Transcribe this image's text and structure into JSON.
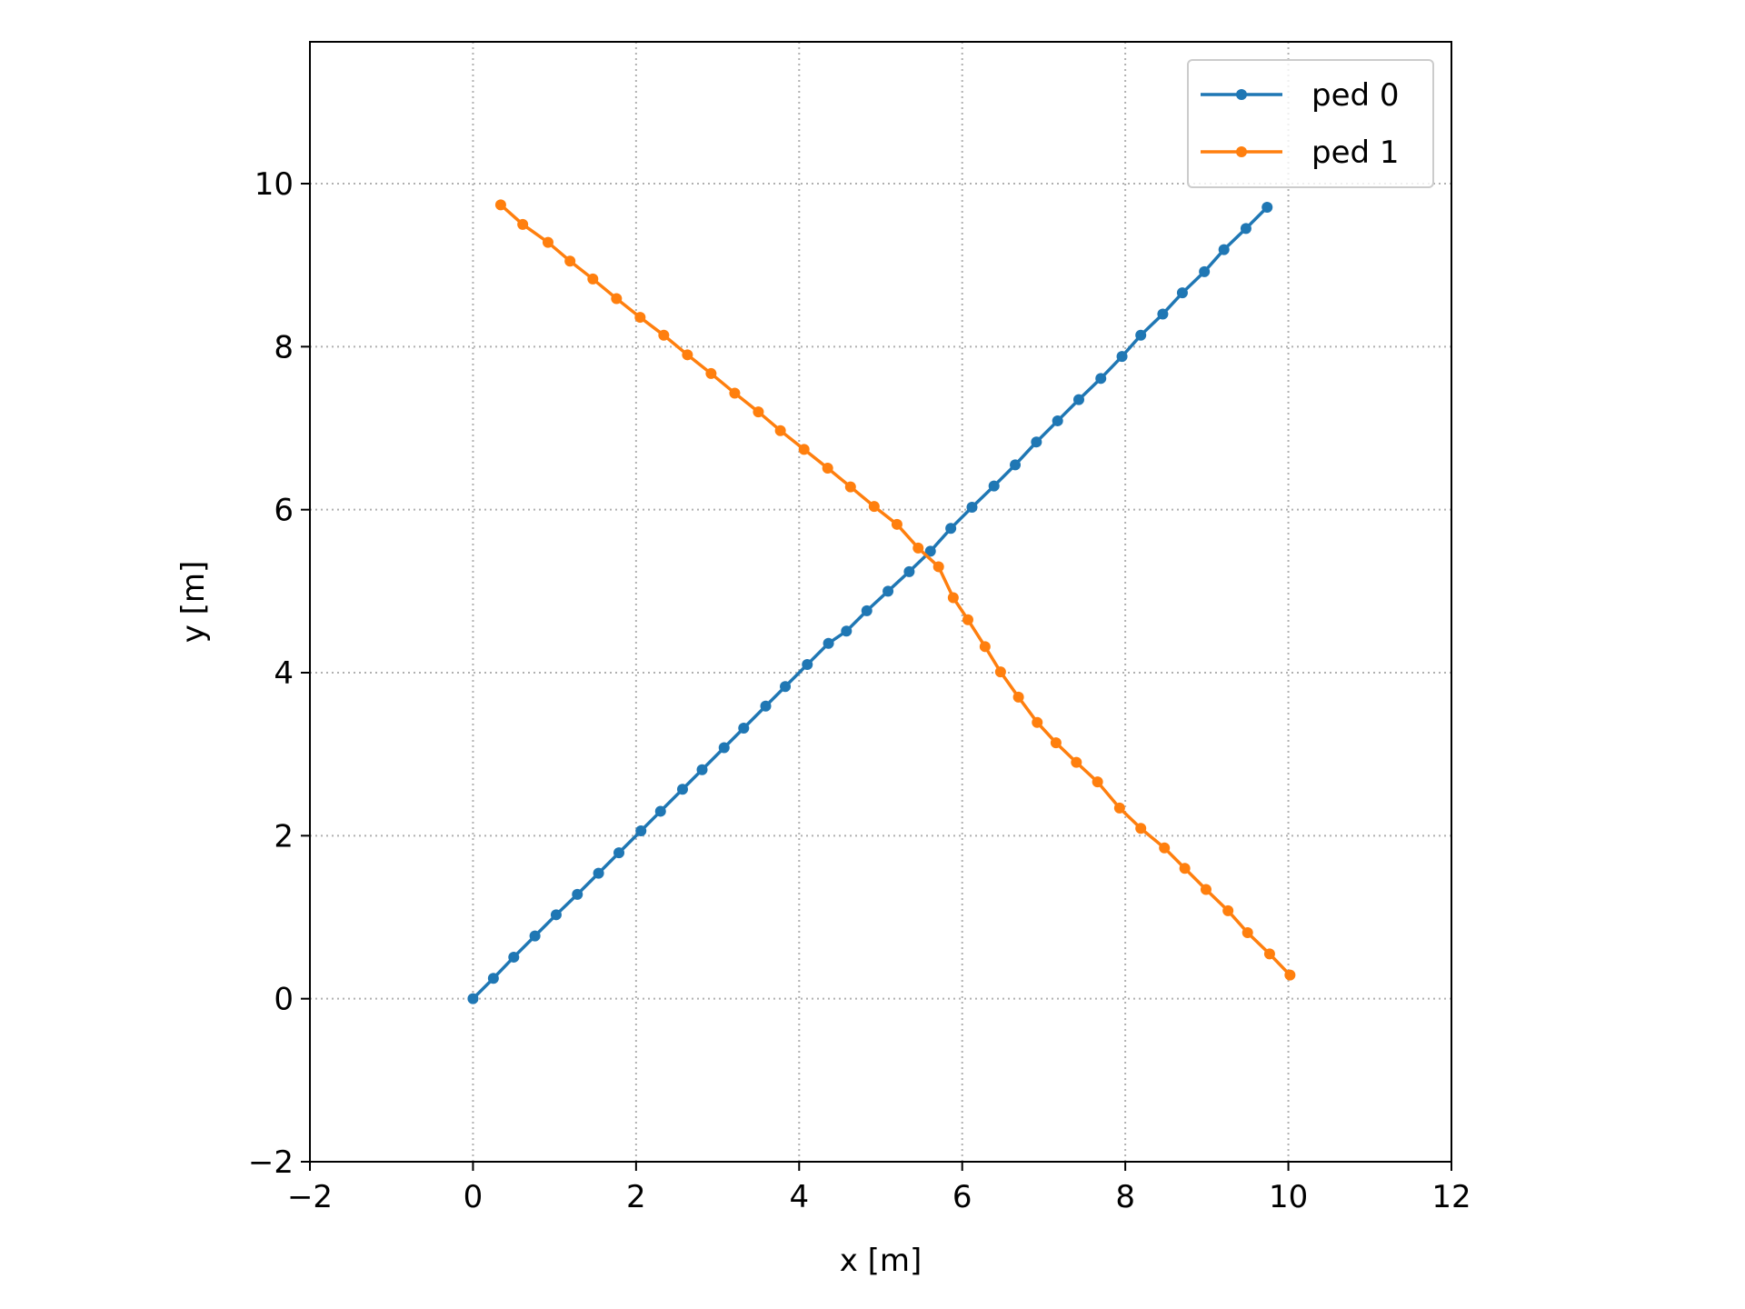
{
  "chart_data": {
    "type": "line",
    "xlabel": "x [m]",
    "ylabel": "y [m]",
    "xlim": [
      -2,
      12
    ],
    "ylim": [
      -2,
      11.74
    ],
    "xticks": [
      {
        "value": -2,
        "label": "−2"
      },
      0,
      2,
      4,
      6,
      8,
      10,
      12
    ],
    "yticks": [
      {
        "value": -2,
        "label": "−2"
      },
      0,
      2,
      4,
      6,
      8,
      10
    ],
    "grid": true,
    "legend": "upper right",
    "series": [
      {
        "name": "ped 0",
        "color": "#1f77b4",
        "x": [
          0,
          0.25,
          0.5,
          0.76,
          1.02,
          1.28,
          1.54,
          1.79,
          2.06,
          2.3,
          2.57,
          2.81,
          3.08,
          3.32,
          3.59,
          3.83,
          4.1,
          4.36,
          4.58,
          4.83,
          5.09,
          5.35,
          5.61,
          5.86,
          6.12,
          6.39,
          6.65,
          6.91,
          7.17,
          7.43,
          7.7,
          7.96,
          8.19,
          8.46,
          8.7,
          8.97,
          9.21,
          9.48,
          9.74
        ],
        "values": [
          0,
          0.25,
          0.51,
          0.77,
          1.03,
          1.28,
          1.54,
          1.79,
          2.06,
          2.3,
          2.57,
          2.81,
          3.08,
          3.32,
          3.59,
          3.83,
          4.1,
          4.36,
          4.51,
          4.76,
          5.0,
          5.24,
          5.49,
          5.77,
          6.03,
          6.29,
          6.55,
          6.83,
          7.09,
          7.35,
          7.61,
          7.88,
          8.14,
          8.4,
          8.66,
          8.92,
          9.19,
          9.45,
          9.71
        ]
      },
      {
        "name": "ped 1",
        "color": "#ff7f0e",
        "x": [
          0.34,
          0.61,
          0.92,
          1.19,
          1.47,
          1.76,
          2.05,
          2.34,
          2.63,
          2.92,
          3.21,
          3.5,
          3.77,
          4.06,
          4.35,
          4.63,
          4.92,
          5.2,
          5.46,
          5.71,
          5.89,
          6.07,
          6.28,
          6.47,
          6.69,
          6.92,
          7.15,
          7.4,
          7.66,
          7.93,
          8.19,
          8.48,
          8.73,
          8.99,
          9.26,
          9.5,
          9.77,
          10.02
        ],
        "values": [
          9.74,
          9.5,
          9.28,
          9.05,
          8.83,
          8.59,
          8.36,
          8.14,
          7.9,
          7.67,
          7.43,
          7.2,
          6.97,
          6.74,
          6.51,
          6.28,
          6.04,
          5.82,
          5.53,
          5.3,
          4.92,
          4.65,
          4.32,
          4.01,
          3.7,
          3.39,
          3.14,
          2.9,
          2.66,
          2.34,
          2.09,
          1.85,
          1.6,
          1.34,
          1.08,
          0.81,
          0.55,
          0.29
        ]
      }
    ]
  }
}
